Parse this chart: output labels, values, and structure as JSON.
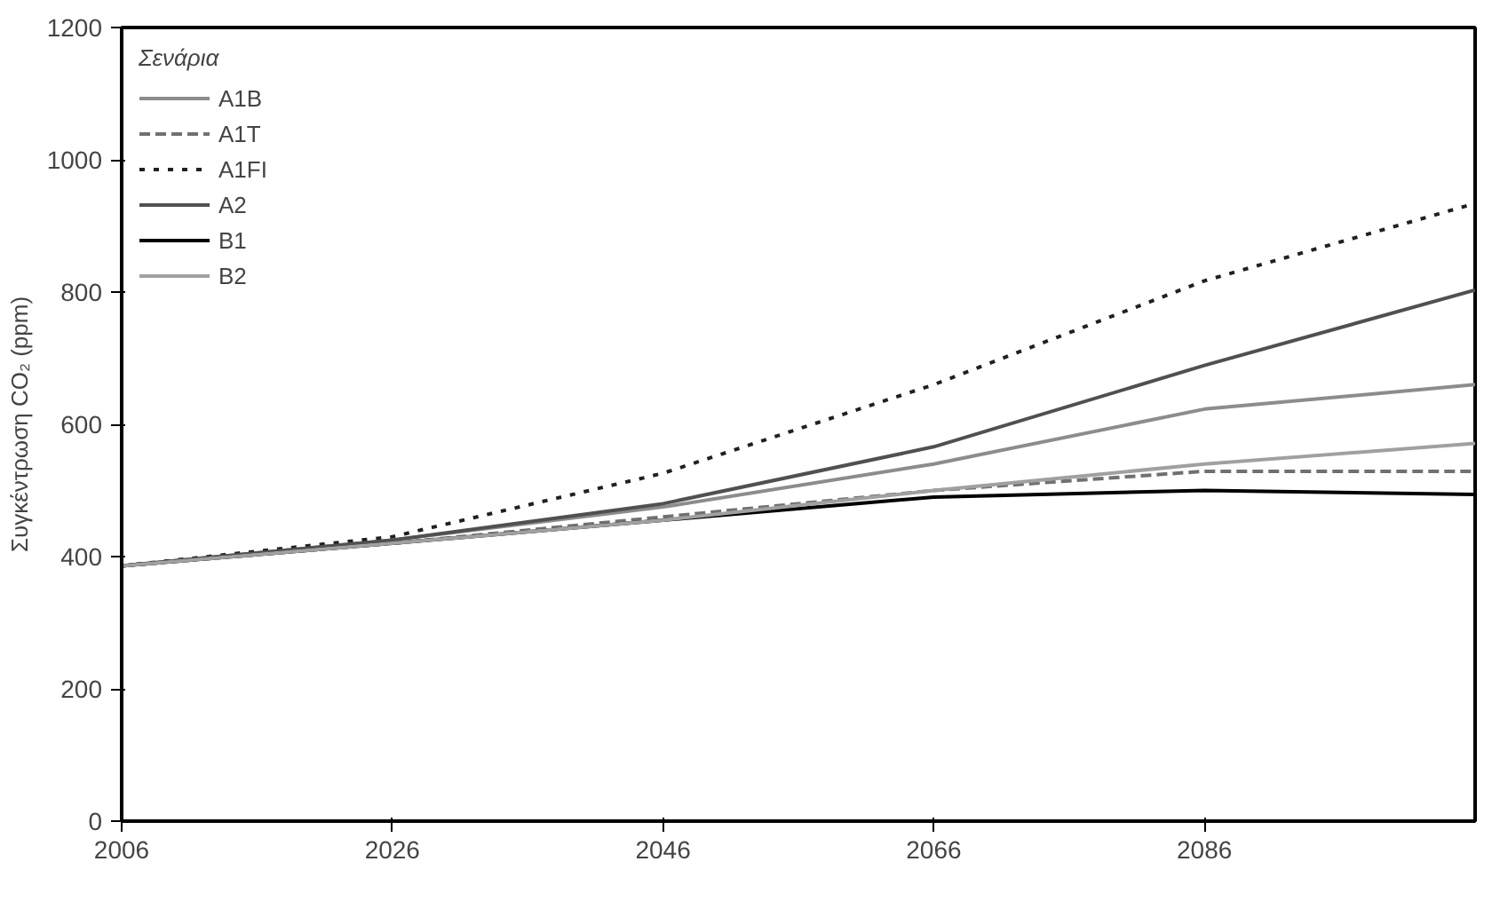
{
  "chart_data": {
    "type": "line",
    "ylabel": "Συγκέντρωση CO₂ (ppm)",
    "legend_title": "Σενάρια",
    "legend": "top left",
    "grid": false,
    "marker": "none",
    "x": [
      2006,
      2026,
      2046,
      2066,
      2086,
      2106
    ],
    "xlim": [
      2006,
      2106
    ],
    "xticks": [
      2006,
      2026,
      2046,
      2066,
      2086
    ],
    "ylim": [
      0,
      1200
    ],
    "yticks": [
      0,
      200,
      400,
      600,
      800,
      1000,
      1200
    ],
    "series": [
      {
        "name": "A1B",
        "color": "#8c8c8c",
        "line_style": "solid",
        "values": [
          386,
          425,
          475,
          540,
          623,
          660
        ]
      },
      {
        "name": "A1T",
        "color": "#707070",
        "line_style": "dashed",
        "values": [
          386,
          420,
          460,
          500,
          529,
          529
        ]
      },
      {
        "name": "A1FI",
        "color": "#202020",
        "line_style": "dotted",
        "values": [
          386,
          430,
          526,
          660,
          817,
          934
        ]
      },
      {
        "name": "A2",
        "color": "#505050",
        "line_style": "solid",
        "values": [
          386,
          425,
          480,
          566,
          689,
          803
        ]
      },
      {
        "name": "B1",
        "color": "#000000",
        "line_style": "solid",
        "values": [
          386,
          420,
          455,
          490,
          500,
          494
        ]
      },
      {
        "name": "B2",
        "color": "#a0a0a0",
        "line_style": "solid",
        "values": [
          386,
          420,
          455,
          500,
          540,
          571
        ]
      }
    ]
  }
}
